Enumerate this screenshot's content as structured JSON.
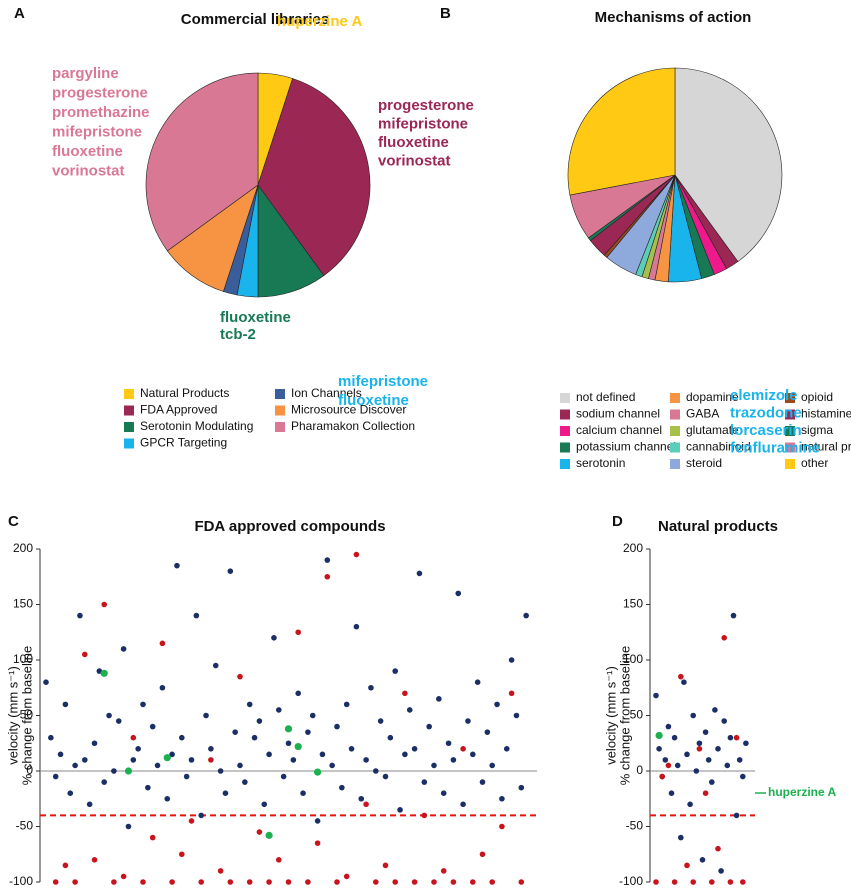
{
  "chart_data": [
    {
      "type": "pie",
      "letter": "A",
      "title": "Commercial libraries",
      "categories": [
        "Natural Products",
        "FDA Approved",
        "Serotonin Modulating",
        "GPCR Targeting",
        "Ion Channels",
        "Microsource Discover",
        "Pharamakon Collection"
      ],
      "values": [
        5,
        35,
        10,
        3,
        2,
        10,
        35
      ],
      "colors": [
        "#ffc914",
        "#9b2755",
        "#187a55",
        "#1ab4ec",
        "#3a5e9c",
        "#f79443",
        "#d97895"
      ],
      "annotations": [
        {
          "lines": [
            "huperzine A"
          ],
          "color": "#ffc914"
        },
        {
          "lines": [
            "progesterone",
            "mifepristone",
            "fluoxetine",
            "vorinostat"
          ],
          "color": "#9b2755"
        },
        {
          "lines": [
            "fluoxetine",
            "tcb-2"
          ],
          "color": "#187a55"
        },
        {
          "lines": [
            "mifepristone",
            "fluoxetine"
          ],
          "color": "#1ab4ec"
        },
        {
          "lines": [
            "pargyline",
            "progesterone",
            "promethazine",
            "mifepristone",
            "fluoxetine",
            "vorinostat"
          ],
          "color": "#d97895"
        }
      ]
    },
    {
      "type": "pie",
      "letter": "B",
      "title": "Mechanisms of action",
      "categories": [
        "not defined",
        "sodium channel",
        "calcium channel",
        "potassium channel",
        "serotonin",
        "dopamine",
        "GABA",
        "glutamate",
        "cannabinoid",
        "steroid",
        "opioid",
        "histamine",
        "sigma",
        "natural products",
        "other"
      ],
      "values": [
        40,
        2,
        2,
        2,
        5,
        2,
        1,
        1,
        1,
        5,
        0.5,
        3,
        0.5,
        7,
        28
      ],
      "colors": [
        "#d6d6d6",
        "#9b2755",
        "#ee1a8c",
        "#187a55",
        "#1ab4ec",
        "#f79443",
        "#d97895",
        "#a6c04a",
        "#5ccdb8",
        "#8eaadc",
        "#9a4a1c",
        "#9b2755",
        "#187a55",
        "#d97895",
        "#ffc914"
      ],
      "annotations": [
        {
          "lines": [
            "clemizole",
            "trazodone",
            "lorcaserin",
            "fenfluramine"
          ],
          "color": "#1ab4ec"
        }
      ]
    },
    {
      "type": "scatter",
      "letter": "C",
      "title": "FDA approved compounds",
      "ylabel": [
        "velocity (mm s⁻¹)",
        "% change from baseline"
      ],
      "xlim": [
        0,
        100
      ],
      "ylim": [
        -100,
        200
      ],
      "yticks": [
        200,
        150,
        100,
        50,
        0,
        -50,
        -100
      ],
      "reference_lines": [
        {
          "value": 0,
          "color": "#888888",
          "dash": false
        },
        {
          "value": -40,
          "color": "#e8140c",
          "dash": true
        }
      ],
      "series": [
        {
          "color": "#1b2f66",
          "x": [
            0,
            1,
            2,
            3,
            4,
            5,
            6,
            7,
            8,
            9,
            10,
            11,
            12,
            13,
            14,
            15,
            16,
            17,
            18,
            19,
            20,
            21,
            22,
            23,
            24,
            25,
            26,
            27,
            28,
            29,
            30,
            31,
            32,
            33,
            34,
            35,
            36,
            37,
            38,
            39,
            40,
            41,
            42,
            43,
            44,
            45,
            46,
            47,
            48,
            49,
            50,
            51,
            52,
            53,
            54,
            55,
            56,
            57,
            58,
            59,
            60,
            61,
            62,
            63,
            64,
            65,
            66,
            67,
            68,
            69,
            70,
            71,
            72,
            73,
            74,
            75,
            76,
            77,
            78,
            79,
            80,
            81,
            82,
            83,
            84,
            85,
            86,
            87,
            88,
            89,
            90,
            91,
            92,
            93,
            94,
            95,
            96,
            97,
            98,
            99
          ],
          "values": [
            80,
            30,
            -5,
            15,
            60,
            -20,
            5,
            140,
            10,
            -30,
            25,
            90,
            -10,
            50,
            0,
            45,
            110,
            -50,
            10,
            20,
            60,
            -15,
            40,
            5,
            75,
            -25,
            15,
            185,
            30,
            -5,
            10,
            140,
            -40,
            50,
            20,
            95,
            0,
            -20,
            180,
            35,
            5,
            -10,
            60,
            30,
            45,
            -30,
            15,
            120,
            55,
            -5,
            25,
            10,
            70,
            -20,
            35,
            50,
            -45,
            15,
            190,
            5,
            40,
            -15,
            60,
            20,
            130,
            -25,
            10,
            75,
            0,
            45,
            -5,
            30,
            90,
            -35,
            15,
            55,
            20,
            178,
            -10,
            40,
            5,
            65,
            -20,
            25,
            10,
            160,
            -30,
            45,
            15,
            80,
            -10,
            35,
            5,
            60,
            -25,
            20,
            100,
            50,
            -15,
            140
          ]
        },
        {
          "color": "#c8141c",
          "x": [
            2,
            4,
            6,
            8,
            10,
            12,
            14,
            16,
            18,
            20,
            22,
            24,
            26,
            28,
            30,
            32,
            34,
            36,
            38,
            40,
            42,
            44,
            46,
            48,
            50,
            52,
            54,
            56,
            58,
            60,
            62,
            64,
            66,
            68,
            70,
            72,
            74,
            76,
            78,
            80,
            82,
            84,
            86,
            88,
            90,
            92,
            94,
            96,
            98
          ],
          "values": [
            -100,
            -85,
            -100,
            105,
            -80,
            150,
            -100,
            -95,
            30,
            -100,
            -60,
            115,
            -100,
            -75,
            -45,
            -100,
            10,
            -90,
            -100,
            85,
            -100,
            -55,
            -100,
            -80,
            -100,
            125,
            -100,
            -65,
            175,
            -100,
            -95,
            195,
            -30,
            -100,
            -85,
            -100,
            70,
            -100,
            -40,
            -100,
            -90,
            -100,
            20,
            -100,
            -75,
            -100,
            -50,
            70,
            -100
          ]
        },
        {
          "color": "#1db04e",
          "x": [
            12,
            17,
            25,
            46,
            50,
            52,
            56
          ],
          "values": [
            88,
            0,
            12,
            -58,
            38,
            22,
            -1
          ]
        }
      ]
    },
    {
      "type": "scatter",
      "letter": "D",
      "title": "Natural products",
      "ylabel": [
        "velocity (mm s⁻¹)",
        "% change from baseline"
      ],
      "xlim": [
        0,
        30
      ],
      "ylim": [
        -100,
        200
      ],
      "yticks": [
        200,
        150,
        100,
        50,
        0,
        -50,
        -100
      ],
      "reference_lines": [
        {
          "value": 0,
          "color": "#888888",
          "dash": false
        },
        {
          "value": -40,
          "color": "#e8140c",
          "dash": true
        }
      ],
      "series": [
        {
          "color": "#1b2f66",
          "x": [
            0,
            1,
            2,
            3,
            4,
            5,
            6,
            7,
            8,
            9,
            10,
            11,
            12,
            13,
            14,
            15,
            16,
            17,
            18,
            19,
            20,
            21,
            22,
            23,
            24,
            25,
            26,
            27,
            28,
            29
          ],
          "values": [
            68,
            20,
            -5,
            10,
            40,
            -20,
            30,
            5,
            -60,
            80,
            15,
            -30,
            50,
            0,
            25,
            -80,
            35,
            10,
            -10,
            55,
            20,
            -90,
            45,
            5,
            30,
            140,
            -40,
            10,
            -5,
            25
          ]
        },
        {
          "color": "#c8141c",
          "x": [
            0,
            2,
            4,
            6,
            8,
            10,
            12,
            14,
            16,
            18,
            20,
            22,
            24,
            26,
            28
          ],
          "values": [
            -100,
            -5,
            5,
            -100,
            85,
            -85,
            -100,
            20,
            -20,
            -100,
            -70,
            120,
            -100,
            30,
            -100
          ]
        },
        {
          "color": "#1db04e",
          "x": [
            1
          ],
          "values": [
            32
          ]
        }
      ],
      "annotations": [
        {
          "lines": [
            "huperzine A"
          ],
          "color": "#1db04e"
        }
      ]
    }
  ]
}
